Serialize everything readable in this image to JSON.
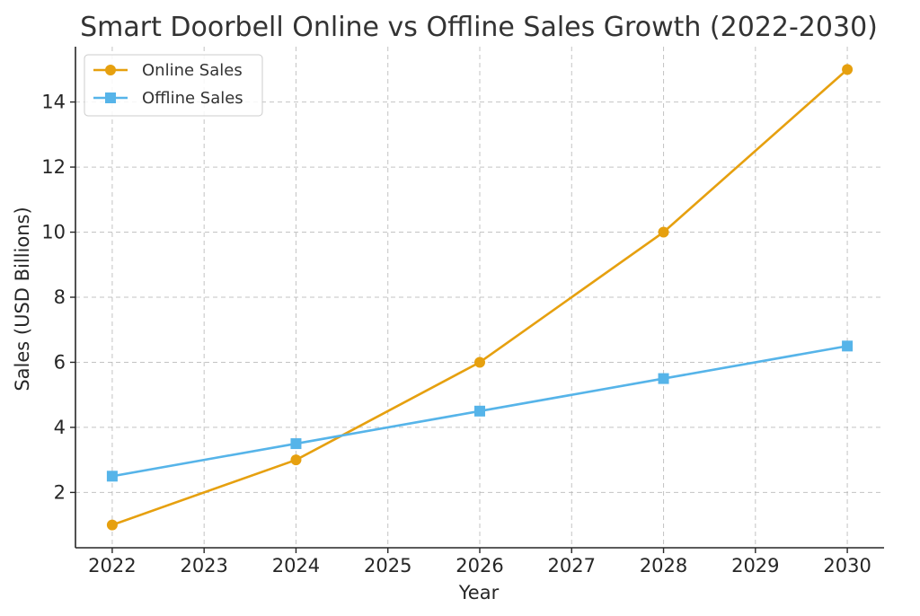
{
  "chart_data": {
    "type": "line",
    "title": "Smart Doorbell Online vs Offline Sales Growth (2022-2030)",
    "xlabel": "Year",
    "ylabel": "Sales (USD Billions)",
    "x": [
      2022,
      2024,
      2026,
      2028,
      2030
    ],
    "x_ticks": [
      "2022",
      "2023",
      "2024",
      "2025",
      "2026",
      "2027",
      "2028",
      "2029",
      "2030"
    ],
    "y_ticks": [
      "2",
      "4",
      "6",
      "8",
      "10",
      "12",
      "14"
    ],
    "xlim": [
      2021.6,
      2030.4
    ],
    "ylim": [
      0.3,
      15.7
    ],
    "grid": true,
    "legend_position": "top-left",
    "series": [
      {
        "name": "Online Sales",
        "values": [
          1,
          3,
          6,
          10,
          15
        ],
        "color": "#E6A00F",
        "marker": "circle"
      },
      {
        "name": "Offline Sales",
        "values": [
          2.5,
          3.5,
          4.5,
          5.5,
          6.5
        ],
        "color": "#56B4E9",
        "marker": "square"
      }
    ]
  }
}
